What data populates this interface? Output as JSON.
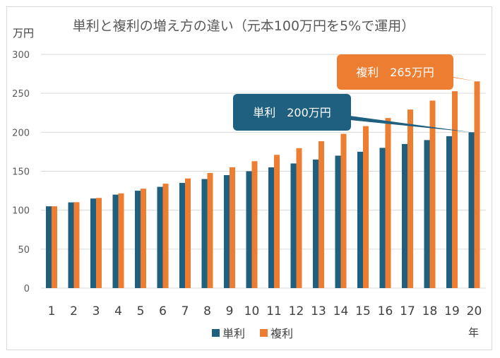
{
  "chart_data": {
    "type": "bar",
    "title": "単利と複利の増え方の違い（元本100万円を5%で運用）",
    "ylabel": "万円",
    "xlabel": "年",
    "ylim": [
      0,
      300
    ],
    "yticks": [
      0,
      50,
      100,
      150,
      200,
      250,
      300
    ],
    "grid": true,
    "legend_position": "bottom",
    "categories": [
      "1",
      "2",
      "3",
      "4",
      "5",
      "6",
      "7",
      "8",
      "9",
      "10",
      "11",
      "12",
      "13",
      "14",
      "15",
      "16",
      "17",
      "18",
      "19",
      "20"
    ],
    "series": [
      {
        "name": "単利",
        "color": "#1f5f7f",
        "values": [
          105,
          110,
          115,
          120,
          125,
          130,
          135,
          140,
          145,
          150,
          155,
          160,
          165,
          170,
          175,
          180,
          185,
          190,
          195,
          200
        ]
      },
      {
        "name": "複利",
        "color": "#ed7d31",
        "values": [
          105,
          110.25,
          115.76,
          121.55,
          127.63,
          134.01,
          140.71,
          147.75,
          155.13,
          162.89,
          171.03,
          179.59,
          188.56,
          197.99,
          207.89,
          218.29,
          229.2,
          240.66,
          252.7,
          265.33
        ]
      }
    ],
    "annotations": [
      {
        "series": "複利",
        "category": "20",
        "text": "複利　265万円",
        "color": "#ed7d31"
      },
      {
        "series": "単利",
        "category": "20",
        "text": "単利　200万円",
        "color": "#1f5f7f"
      }
    ]
  }
}
